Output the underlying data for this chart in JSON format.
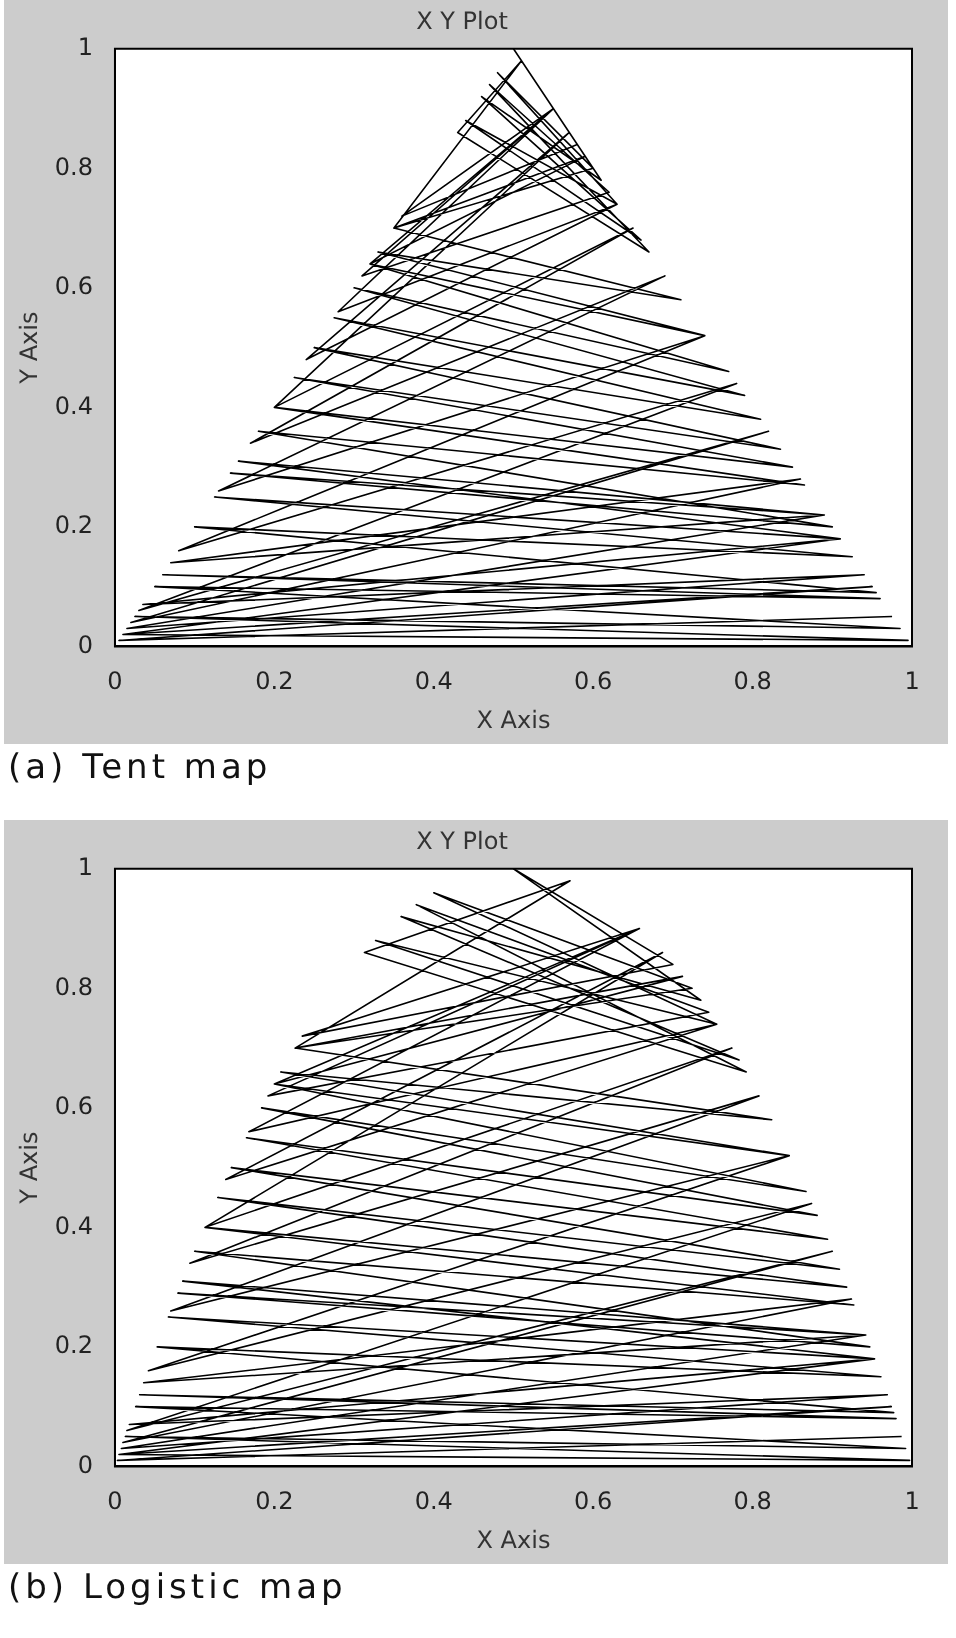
{
  "chart_data": [
    {
      "type": "line",
      "title": "X Y Plot",
      "xlabel": "X Axis",
      "ylabel": "Y Axis",
      "color": "#000000",
      "marker": "none",
      "grid": false,
      "xlim": [
        0,
        1
      ],
      "ylim": [
        0,
        1
      ],
      "xticks": [
        0,
        0.2,
        0.4,
        0.6,
        0.8,
        1
      ],
      "yticks": [
        0,
        0.2,
        0.4,
        0.6,
        0.8,
        1
      ],
      "x": [
        0.01,
        0.995,
        0.025,
        0.985,
        0.05,
        0.96,
        0.06,
        0.955,
        0.1,
        0.925,
        0.125,
        0.91,
        0.155,
        0.89,
        0.145,
        0.9,
        0.18,
        0.865,
        0.2,
        0.85,
        0.225,
        0.835,
        0.25,
        0.81,
        0.275,
        0.79,
        0.3,
        0.77,
        0.32,
        0.74,
        0.33,
        0.71,
        0.35,
        0.6,
        0.48,
        0.63,
        0.44,
        0.66,
        0.46,
        0.61,
        0.5,
        0.58,
        0.36,
        0.55,
        0.31,
        0.62,
        0.47,
        0.67,
        0.43,
        0.51,
        0.35,
        0.59,
        0.32,
        0.55,
        0.28,
        0.63,
        0.24,
        0.57,
        0.2,
        0.65,
        0.17,
        0.69,
        0.13,
        0.74,
        0.08,
        0.78,
        0.03,
        0.82,
        0.02,
        0.86,
        0.07,
        0.89,
        0.015,
        0.94,
        0.035,
        0.91,
        0.01,
        0.95,
        0.005,
        0.975
      ],
      "values": [
        0.02,
        0.01,
        0.05,
        0.03,
        0.1,
        0.08,
        0.12,
        0.09,
        0.2,
        0.15,
        0.25,
        0.18,
        0.31,
        0.22,
        0.29,
        0.2,
        0.36,
        0.27,
        0.4,
        0.3,
        0.45,
        0.33,
        0.5,
        0.38,
        0.55,
        0.42,
        0.6,
        0.46,
        0.64,
        0.52,
        0.66,
        0.58,
        0.7,
        0.8,
        0.96,
        0.74,
        0.88,
        0.68,
        0.92,
        0.78,
        1,
        0.84,
        0.72,
        0.9,
        0.62,
        0.76,
        0.94,
        0.66,
        0.86,
        0.98,
        0.7,
        0.82,
        0.64,
        0.9,
        0.56,
        0.74,
        0.48,
        0.86,
        0.4,
        0.7,
        0.34,
        0.62,
        0.26,
        0.52,
        0.16,
        0.44,
        0.06,
        0.36,
        0.04,
        0.28,
        0.14,
        0.22,
        0.03,
        0.12,
        0.07,
        0.18,
        0.02,
        0.1,
        0.01,
        0.05
      ],
      "annotations": [
        "(a) Tent map"
      ]
    },
    {
      "type": "line",
      "title": "X Y Plot",
      "xlabel": "X Axis",
      "ylabel": "Y Axis",
      "color": "#000000",
      "marker": "none",
      "grid": false,
      "xlim": [
        0,
        1
      ],
      "ylim": [
        0,
        1
      ],
      "xticks": [
        0,
        0.2,
        0.4,
        0.6,
        0.8,
        1
      ],
      "yticks": [
        0,
        0.2,
        0.4,
        0.6,
        0.8,
        1
      ],
      "x": [
        0.005,
        0.997,
        0.013,
        0.992,
        0.026,
        0.98,
        0.031,
        0.977,
        0.053,
        0.961,
        0.067,
        0.953,
        0.085,
        0.942,
        0.079,
        0.947,
        0.1,
        0.927,
        0.113,
        0.918,
        0.129,
        0.909,
        0.146,
        0.894,
        0.165,
        0.881,
        0.184,
        0.867,
        0.2,
        0.846,
        0.208,
        0.824,
        0.226,
        0.724,
        0.4,
        0.755,
        0.327,
        0.783,
        0.359,
        0.735,
        0.5,
        0.7,
        0.235,
        0.658,
        0.192,
        0.745,
        0.378,
        0.792,
        0.313,
        0.571,
        0.226,
        0.712,
        0.2,
        0.658,
        0.168,
        0.755,
        0.139,
        0.687,
        0.113,
        0.774,
        0.094,
        0.808,
        0.07,
        0.846,
        0.042,
        0.874,
        0.015,
        0.9,
        0.01,
        0.924,
        0.036,
        0.942,
        0.008,
        0.969,
        0.018,
        0.953,
        0.005,
        0.974,
        0.003,
        0.987
      ],
      "values": [
        0.02,
        0.01,
        0.05,
        0.03,
        0.1,
        0.08,
        0.12,
        0.09,
        0.2,
        0.15,
        0.25,
        0.18,
        0.31,
        0.22,
        0.29,
        0.2,
        0.36,
        0.27,
        0.4,
        0.3,
        0.45,
        0.33,
        0.5,
        0.38,
        0.55,
        0.42,
        0.6,
        0.46,
        0.64,
        0.52,
        0.66,
        0.58,
        0.7,
        0.8,
        0.96,
        0.74,
        0.88,
        0.68,
        0.92,
        0.78,
        1,
        0.84,
        0.72,
        0.9,
        0.62,
        0.76,
        0.94,
        0.66,
        0.86,
        0.98,
        0.7,
        0.82,
        0.64,
        0.9,
        0.56,
        0.74,
        0.48,
        0.86,
        0.4,
        0.7,
        0.34,
        0.62,
        0.26,
        0.52,
        0.16,
        0.44,
        0.06,
        0.36,
        0.04,
        0.28,
        0.14,
        0.22,
        0.03,
        0.12,
        0.07,
        0.18,
        0.02,
        0.1,
        0.01,
        0.05
      ],
      "annotations": [
        "(b) Logistic map"
      ]
    }
  ]
}
